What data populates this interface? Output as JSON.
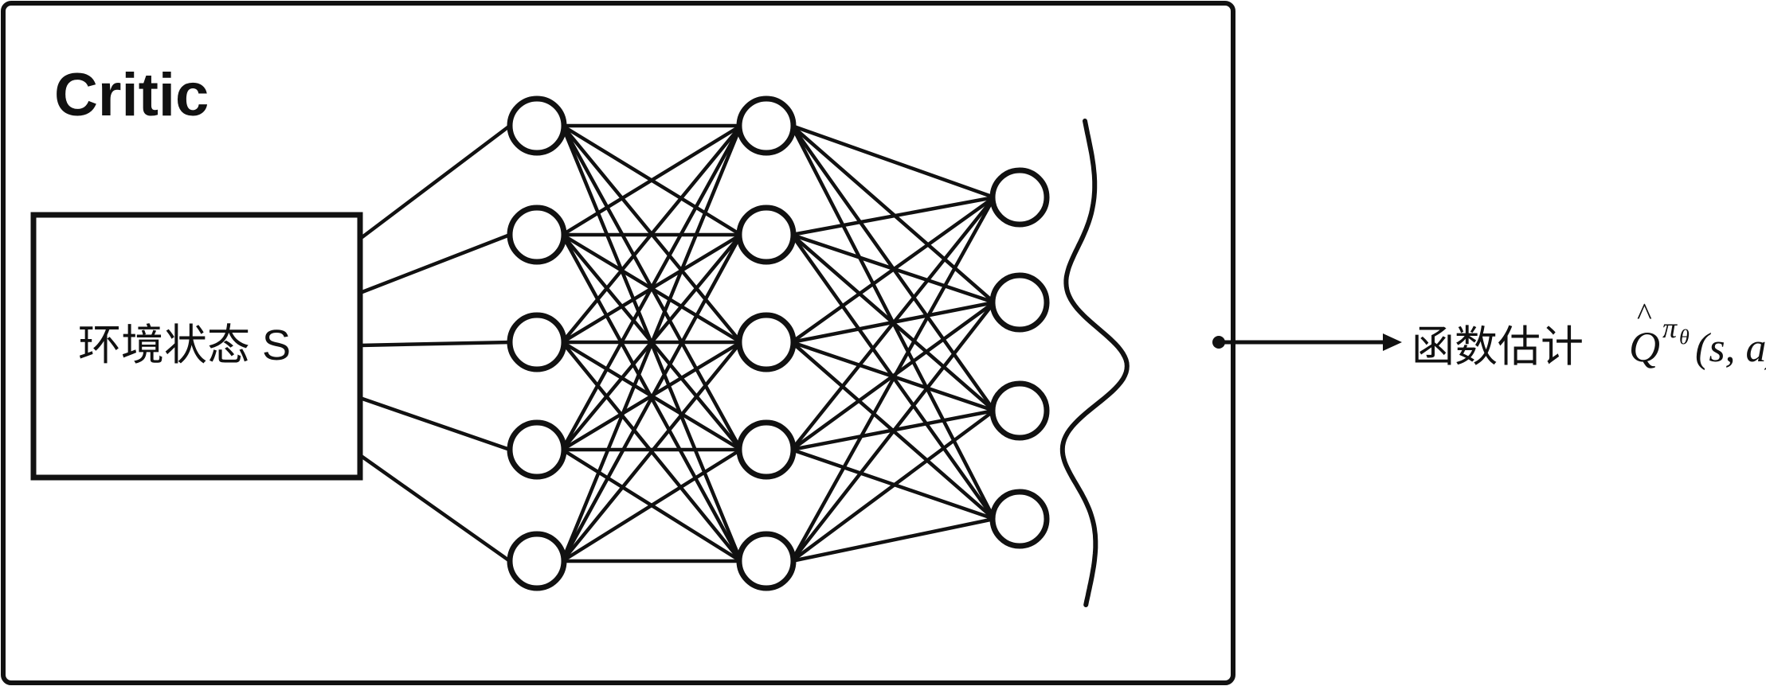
{
  "diagram": {
    "title": "Critic",
    "input_label": "环境状态 S",
    "output_label": "函数估计",
    "output_math": {
      "hat": "^",
      "symbol": "Q",
      "superscript_base": "π",
      "superscript_sub": "θ",
      "args": "(s, a)"
    },
    "network": {
      "layers": [
        5,
        5,
        4
      ],
      "connectivity": "fully-connected"
    },
    "colors": {
      "stroke": "#111111",
      "background": "#ffffff"
    }
  }
}
